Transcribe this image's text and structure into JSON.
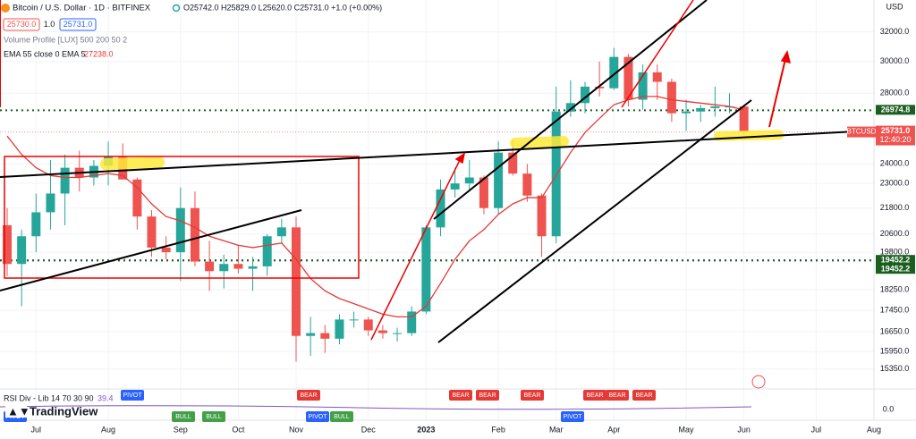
{
  "chart_data": {
    "type": "candlestick",
    "title": "Bitcoin / U.S. Dollar · 1D · BITFINEX",
    "ohlc_header": "O25742.0 H25829.0 L25620.0 C25731.0 +1.0 (+0.00%)",
    "bid": "25730.0",
    "spread": "1.0",
    "ask": "25731.0",
    "indicators": [
      "Volume Profile [LUX] 500 200 50 2",
      "EMA 55 close 0 EMA 5"
    ],
    "ema_value": "27238.0",
    "currency": "USD",
    "symbol_tag": "BTCUSD",
    "countdown": "12:40:20",
    "logo": "TradingView",
    "categories": [
      null,
      null,
      "Jul",
      null,
      null,
      null,
      null,
      "Aug",
      null,
      null,
      null,
      null,
      "Sep",
      null,
      null,
      null,
      "Oct",
      null,
      null,
      null,
      "Nov",
      null,
      null,
      null,
      null,
      "Dec",
      null,
      null,
      null,
      "2023",
      null,
      null,
      null,
      null,
      "Feb",
      null,
      null,
      null,
      "Mar",
      null,
      null,
      null,
      "Apr",
      null,
      null,
      null,
      null,
      "May",
      null,
      null,
      null,
      "Jun",
      null,
      null,
      null,
      null,
      "Jul",
      null,
      null,
      null,
      "Aug"
    ],
    "open": [
      21000,
      19300,
      20500,
      21600,
      22500,
      23800,
      23300,
      23900,
      24400,
      23200,
      21400,
      20000,
      19800,
      21800,
      19400,
      19000,
      19300,
      19100,
      19200,
      20500,
      20900,
      16500,
      16600,
      16400,
      17100,
      17100,
      16700,
      16600,
      16600,
      17400,
      20900,
      22700,
      23000,
      23300,
      21800,
      24600,
      23500,
      22400,
      20500,
      26900,
      27400,
      28400,
      28300,
      30300,
      27600,
      29300,
      28700,
      26800,
      26900,
      27100,
      27200,
      27200,
      null,
      null,
      null,
      null,
      null,
      null,
      null,
      null,
      null
    ],
    "high": [
      21800,
      20800,
      22500,
      24200,
      24500,
      24700,
      24200,
      25200,
      25100,
      23300,
      21700,
      20500,
      22800,
      22600,
      20300,
      19700,
      20100,
      19600,
      20600,
      21300,
      21400,
      17200,
      16900,
      17300,
      17400,
      17200,
      16900,
      16800,
      17600,
      21000,
      23200,
      23800,
      24200,
      23400,
      25200,
      25300,
      24000,
      22500,
      28400,
      28800,
      28700,
      30000,
      30900,
      30500,
      29800,
      29800,
      28900,
      27600,
      27300,
      28400,
      28000,
      27300,
      null,
      null,
      null,
      null,
      null,
      null,
      null,
      null,
      null
    ],
    "low": [
      18800,
      17600,
      19800,
      20800,
      21000,
      22600,
      22900,
      22900,
      23200,
      20800,
      19600,
      19500,
      18600,
      19200,
      18200,
      18300,
      18900,
      18200,
      18800,
      20200,
      15600,
      15800,
      15900,
      16200,
      16800,
      16500,
      16400,
      16300,
      16500,
      17300,
      20500,
      22300,
      22600,
      21500,
      21500,
      23400,
      22100,
      19600,
      20200,
      26600,
      26800,
      27800,
      28200,
      27200,
      27000,
      27600,
      26300,
      25800,
      26300,
      26600,
      26800,
      25600,
      null,
      null,
      null,
      null,
      null,
      null,
      null,
      null,
      null
    ],
    "close": [
      19300,
      20500,
      21600,
      22500,
      23800,
      23300,
      23900,
      24400,
      23200,
      21400,
      20000,
      19800,
      21800,
      19400,
      19000,
      19300,
      19100,
      19200,
      20500,
      20900,
      16500,
      16600,
      16400,
      17100,
      17100,
      16700,
      16600,
      16600,
      17400,
      20900,
      22700,
      23000,
      23300,
      21800,
      24600,
      23500,
      22400,
      20500,
      26900,
      27400,
      28400,
      28300,
      30300,
      27600,
      29300,
      28700,
      26800,
      26900,
      27100,
      27200,
      27200,
      {
        "value": 25731,
        "label": "25731.0"
      },
      null,
      null,
      null,
      null,
      null,
      null,
      null,
      null,
      null
    ],
    "ema": [
      25500,
      24500,
      23800,
      23400,
      23300,
      23300,
      23400,
      23500,
      23400,
      22800,
      22000,
      21400,
      21200,
      20900,
      20500,
      20300,
      20100,
      20000,
      20100,
      20200,
      19500,
      18700,
      18200,
      17900,
      17700,
      17500,
      17300,
      17200,
      17200,
      17600,
      18500,
      19500,
      20300,
      20800,
      21500,
      22000,
      22300,
      22300,
      23400,
      24600,
      25700,
      26500,
      27300,
      27600,
      27800,
      27800,
      27600,
      27500,
      27400,
      27300,
      27200,
      27000,
      null,
      null,
      null,
      null,
      null,
      null,
      null,
      null,
      null
    ],
    "ema_color": "#e53935",
    "up_color": "#26a69a",
    "down_color": "#ef5350",
    "levels": [
      26974.8,
      19452.2,
      19452.2
    ],
    "level_color": "#1b5e20",
    "ylim": [
      14700,
      34300
    ],
    "log_scale": true,
    "grid": true,
    "yticks": [
      {
        "value": 32000,
        "label": "32000.0"
      },
      {
        "value": 30000,
        "label": "30000.0"
      },
      {
        "value": 28000,
        "label": "28000.0"
      },
      {
        "value": 24000,
        "label": "24000.0"
      },
      {
        "value": 23000,
        "label": "23000.0"
      },
      {
        "value": 21800,
        "label": "21800.0"
      },
      {
        "value": 20600,
        "label": "20600.0"
      },
      {
        "value": 19800,
        "label": "19800.0"
      },
      {
        "value": 18250,
        "label": "18250.0"
      },
      {
        "value": 17450,
        "label": "17450.0"
      },
      {
        "value": 16650,
        "label": "16650.0"
      },
      {
        "value": 15950,
        "label": "15950.0"
      },
      {
        "value": 15350,
        "label": "15350.0"
      }
    ],
    "rsi_title": "RSI Div - Lib 14 70 30 90",
    "rsi_value": "39.4",
    "rsi_axis": "0.0",
    "signals": [
      "PIVOT",
      "PIVOT",
      "BULL",
      "BULL",
      "BEAR",
      "PIVOT",
      "BULL",
      "BEAR",
      "BEAR",
      "BEAR",
      "PIVOT",
      "BEAR",
      "BEAR",
      "BEAR"
    ]
  }
}
